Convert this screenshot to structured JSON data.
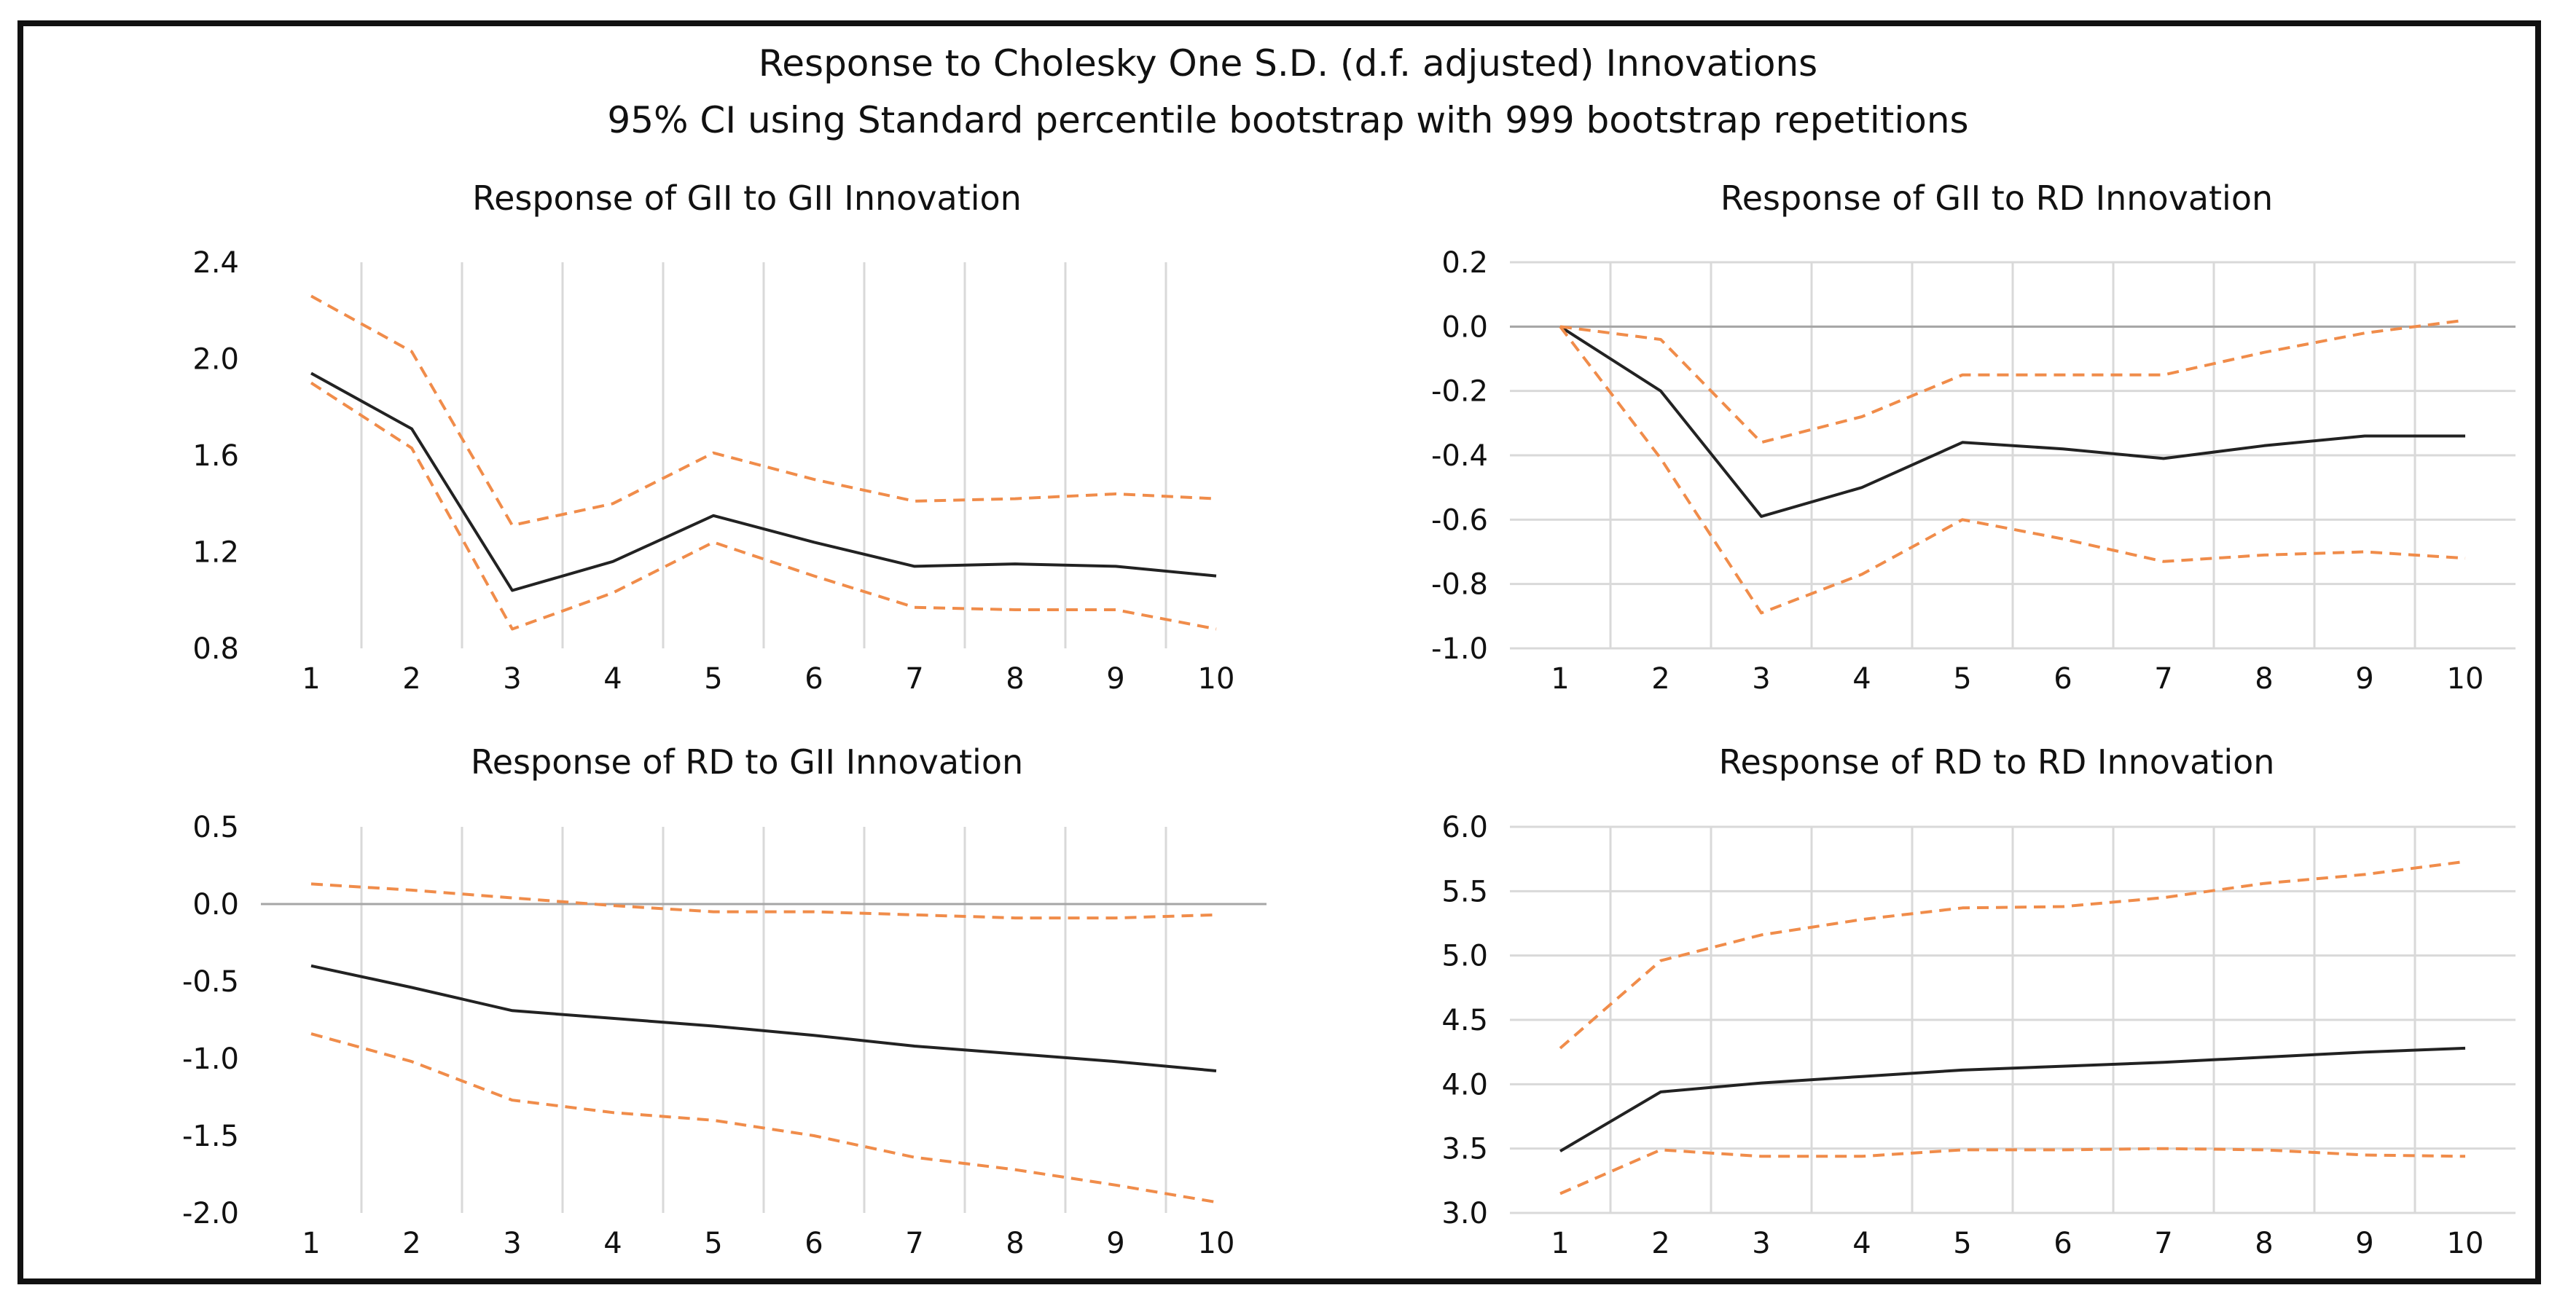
{
  "figure": {
    "title": "Response to Cholesky One S.D. (d.f. adjusted) Innovations",
    "subtitle": "95% CI using Standard percentile bootstrap with 999 bootstrap repetitions"
  },
  "colors": {
    "response_line": "#222222",
    "ci_line": "#f08c4a",
    "grid": "#d9d9d9",
    "zero_line": "#a6a6a6",
    "frame": "#111111"
  },
  "chart_data": [
    {
      "type": "line",
      "title": "Response of GII to GII Innovation",
      "x": [
        1,
        2,
        3,
        4,
        5,
        6,
        7,
        8,
        9,
        10
      ],
      "ylim": [
        0.8,
        2.4
      ],
      "yticks": [
        "2.4",
        "2.0",
        "1.6",
        "1.2",
        "0.8"
      ],
      "xticks": [
        "1",
        "2",
        "3",
        "4",
        "5",
        "6",
        "7",
        "8",
        "9",
        "10"
      ],
      "grid": "vertical",
      "series": [
        {
          "role": "response",
          "style": "solid",
          "values": [
            1.94,
            1.71,
            1.04,
            1.16,
            1.35,
            1.24,
            1.14,
            1.15,
            1.14,
            1.1
          ]
        },
        {
          "role": "upper",
          "style": "dashed",
          "values": [
            2.26,
            2.03,
            1.31,
            1.4,
            1.61,
            1.5,
            1.41,
            1.42,
            1.44,
            1.42
          ]
        },
        {
          "role": "lower",
          "style": "dashed",
          "values": [
            1.9,
            1.63,
            0.88,
            1.03,
            1.24,
            1.1,
            0.97,
            0.96,
            0.96,
            0.88
          ]
        }
      ]
    },
    {
      "type": "line",
      "title": "Response of GII to RD Innovation",
      "x": [
        1,
        2,
        3,
        4,
        5,
        6,
        7,
        8,
        9,
        10
      ],
      "ylim": [
        -1.0,
        0.2
      ],
      "yticks": [
        "0.2",
        "0.0",
        "-0.2",
        "-0.4",
        "-0.6",
        "-0.8",
        "-1.0"
      ],
      "xticks": [
        "1",
        "2",
        "3",
        "4",
        "5",
        "6",
        "7",
        "8",
        "9",
        "10"
      ],
      "grid": "both",
      "zero_line": true,
      "series": [
        {
          "role": "response",
          "style": "solid",
          "values": [
            0.0,
            -0.2,
            -0.59,
            -0.5,
            -0.36,
            -0.38,
            -0.41,
            -0.37,
            -0.34,
            -0.34
          ]
        },
        {
          "role": "upper",
          "style": "dashed",
          "values": [
            0.0,
            -0.04,
            -0.36,
            -0.28,
            -0.15,
            -0.15,
            -0.15,
            -0.08,
            -0.02,
            0.02
          ]
        },
        {
          "role": "lower",
          "style": "dashed",
          "values": [
            0.0,
            -0.41,
            -0.89,
            -0.77,
            -0.6,
            -0.66,
            -0.73,
            -0.71,
            -0.7,
            -0.72
          ]
        }
      ]
    },
    {
      "type": "line",
      "title": "Response of RD to GII Innovation",
      "x": [
        1,
        2,
        3,
        4,
        5,
        6,
        7,
        8,
        9,
        10
      ],
      "ylim": [
        -2.0,
        0.5
      ],
      "yticks": [
        "0.5",
        "0.0",
        "-0.5",
        "-1.0",
        "-1.5",
        "-2.0"
      ],
      "xticks": [
        "1",
        "2",
        "3",
        "4",
        "5",
        "6",
        "7",
        "8",
        "9",
        "10"
      ],
      "grid": "vertical",
      "zero_line": true,
      "series": [
        {
          "role": "response",
          "style": "solid",
          "values": [
            -0.4,
            -0.54,
            -0.69,
            -0.74,
            -0.79,
            -0.85,
            -0.92,
            -0.97,
            -1.02,
            -1.08
          ]
        },
        {
          "role": "upper",
          "style": "dashed",
          "values": [
            0.13,
            0.09,
            0.04,
            -0.01,
            -0.05,
            -0.05,
            -0.07,
            -0.09,
            -0.09,
            -0.07
          ]
        },
        {
          "role": "lower",
          "style": "dashed",
          "values": [
            -0.84,
            -1.02,
            -1.27,
            -1.35,
            -1.4,
            -1.5,
            -1.64,
            -1.72,
            -1.82,
            -1.93
          ]
        }
      ]
    },
    {
      "type": "line",
      "title": "Response of RD to RD Innovation",
      "x": [
        1,
        2,
        3,
        4,
        5,
        6,
        7,
        8,
        9,
        10
      ],
      "ylim": [
        3.0,
        6.0
      ],
      "yticks": [
        "6.0",
        "5.5",
        "5.0",
        "4.5",
        "4.0",
        "3.5",
        "3.0"
      ],
      "xticks": [
        "1",
        "2",
        "3",
        "4",
        "5",
        "6",
        "7",
        "8",
        "9",
        "10"
      ],
      "grid": "both",
      "series": [
        {
          "role": "response",
          "style": "solid",
          "values": [
            3.48,
            3.94,
            4.01,
            4.06,
            4.11,
            4.14,
            4.17,
            4.21,
            4.25,
            4.28
          ]
        },
        {
          "role": "upper",
          "style": "dashed",
          "values": [
            4.28,
            4.96,
            5.16,
            5.28,
            5.37,
            5.38,
            5.45,
            5.56,
            5.63,
            5.73
          ]
        },
        {
          "role": "lower",
          "style": "dashed",
          "values": [
            3.15,
            3.49,
            3.44,
            3.44,
            3.49,
            3.49,
            3.5,
            3.49,
            3.45,
            3.44
          ]
        }
      ]
    }
  ]
}
